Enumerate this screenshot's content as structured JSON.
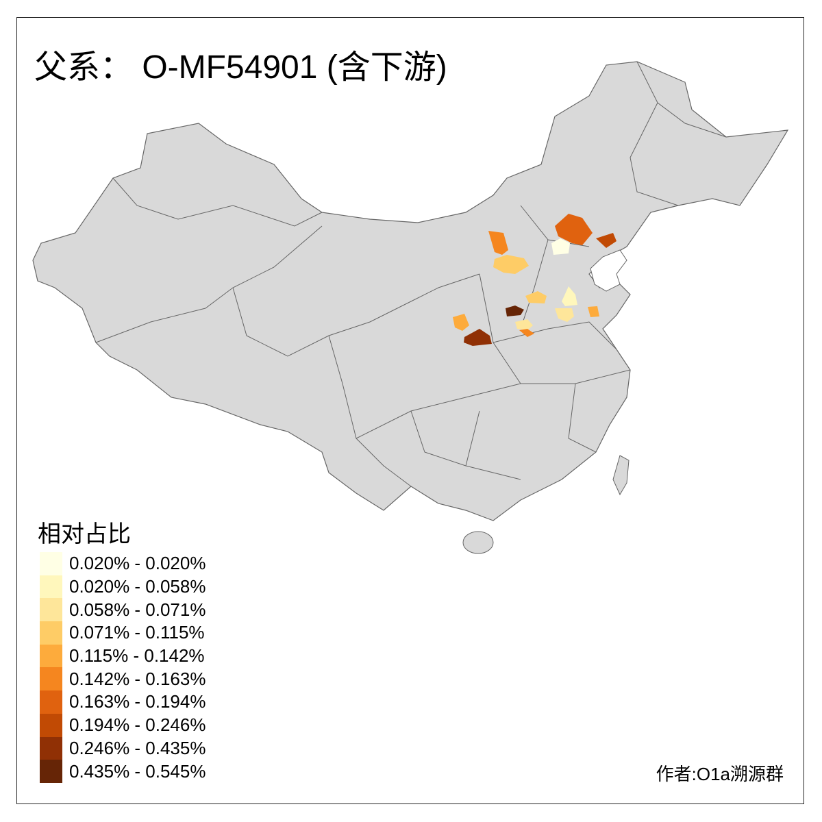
{
  "title": "父系： O-MF54901 (含下游)",
  "map": {
    "base_fill": "#d9d9d9",
    "border_color": "#666666",
    "sea_color": "#ffffff"
  },
  "legend": {
    "title": "相对占比",
    "items": [
      {
        "label": "0.020% - 0.020%",
        "color": "#ffffe5"
      },
      {
        "label": "0.020% - 0.058%",
        "color": "#fff7bc"
      },
      {
        "label": "0.058% - 0.071%",
        "color": "#fee69a"
      },
      {
        "label": "0.071% - 0.115%",
        "color": "#fecc66"
      },
      {
        "label": "0.115% - 0.142%",
        "color": "#fdab3c"
      },
      {
        "label": "0.142% - 0.163%",
        "color": "#f5861f"
      },
      {
        "label": "0.163% - 0.194%",
        "color": "#e0620f"
      },
      {
        "label": "0.194% - 0.246%",
        "color": "#c14a04"
      },
      {
        "label": "0.246% - 0.435%",
        "color": "#903005"
      },
      {
        "label": "0.435% - 0.545%",
        "color": "#662506"
      }
    ]
  },
  "credit": "作者:O1a溯源群"
}
